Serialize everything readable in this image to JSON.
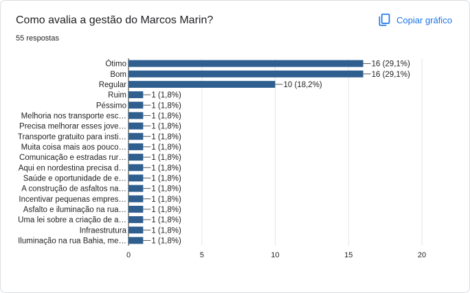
{
  "question": {
    "title": "Como avalia a gestão do Marcos Marin?",
    "responses": "55 respostas"
  },
  "actions": {
    "copy_chart_label": "Copiar gráfico",
    "copy_chart_icon": "copy-icon"
  },
  "colors": {
    "bar": "#2f5f8f",
    "accent": "#1a73e8",
    "grid": "#e6e6e6"
  },
  "chart_data": {
    "type": "bar",
    "orientation": "horizontal",
    "categories": [
      "Ótimo",
      "Bom",
      "Regular",
      "Ruim",
      "Péssimo",
      "Melhoria nos transporte esc…",
      "Precisa melhorar esses jove…",
      "Transporte gratuito para insti…",
      "Muita coisa mais aos pouco…",
      "Comunicação e estradas rur…",
      "Aqui en nordestina precisa d…",
      "Saúde e oportunidade de e…",
      "A construção de asfaltos na…",
      "Incentivar pequenas empres…",
      "Asfalto e iluminação na rua…",
      "Uma lei sobre a criação de a…",
      "Infraestrutura",
      "Iluminação na rua Bahia, me…"
    ],
    "values": [
      16,
      16,
      10,
      1,
      1,
      1,
      1,
      1,
      1,
      1,
      1,
      1,
      1,
      1,
      1,
      1,
      1,
      1
    ],
    "value_labels": [
      "16 (29,1%)",
      "16 (29,1%)",
      "10 (18,2%)",
      "1 (1,8%)",
      "1 (1,8%)",
      "1 (1,8%)",
      "1 (1,8%)",
      "1 (1,8%)",
      "1 (1,8%)",
      "1 (1,8%)",
      "1 (1,8%)",
      "1 (1,8%)",
      "1 (1,8%)",
      "1 (1,8%)",
      "1 (1,8%)",
      "1 (1,8%)",
      "1 (1,8%)",
      "1 (1,8%)"
    ],
    "xticks": [
      "0",
      "5",
      "10",
      "15",
      "20"
    ],
    "xlim": [
      0,
      20
    ],
    "grid": true,
    "title": "",
    "xlabel": "",
    "ylabel": ""
  }
}
